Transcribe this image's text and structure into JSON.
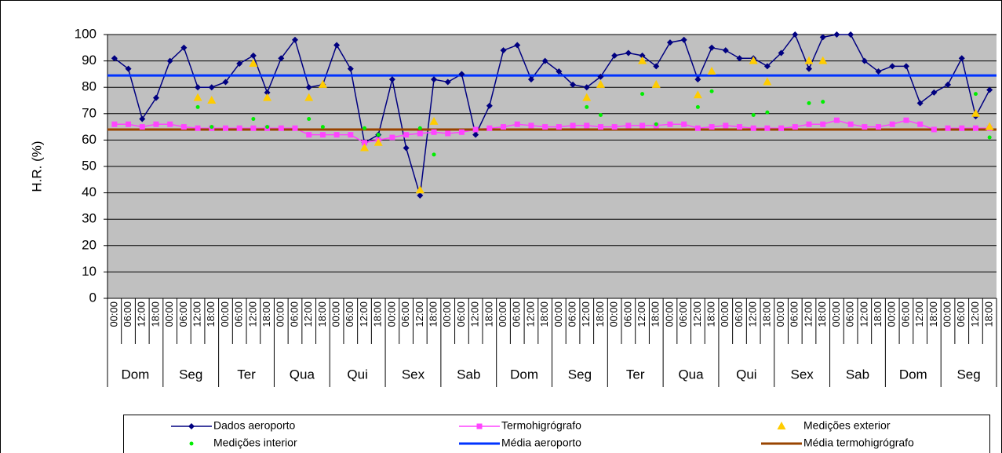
{
  "chart_data": {
    "type": "line",
    "y_label": "H.R. (%)",
    "ylim": [
      0,
      100
    ],
    "yticks": [
      0,
      10,
      20,
      30,
      40,
      50,
      60,
      70,
      80,
      90,
      100
    ],
    "grid": true,
    "plot_background": "#c0c0c0",
    "legend_position": "bottom",
    "categories": [
      "00:00",
      "06:00",
      "12:00",
      "18:00",
      "00:00",
      "06:00",
      "12:00",
      "18:00",
      "00:00",
      "06:00",
      "12:00",
      "18:00",
      "00:00",
      "06:00",
      "12:00",
      "18:00",
      "00:00",
      "06:00",
      "12:00",
      "18:00",
      "00:00",
      "06:00",
      "12:00",
      "18:00",
      "00:00",
      "06:00",
      "12:00",
      "18:00",
      "00:00",
      "06:00",
      "12:00",
      "18:00",
      "00:00",
      "06:00",
      "12:00",
      "18:00",
      "00:00",
      "06:00",
      "12:00",
      "18:00",
      "00:00",
      "06:00",
      "12:00",
      "18:00",
      "00:00",
      "06:00",
      "12:00",
      "18:00",
      "00:00",
      "06:00",
      "12:00",
      "18:00",
      "00:00",
      "06:00",
      "12:00",
      "18:00",
      "00:00",
      "06:00",
      "12:00",
      "18:00",
      "00:00",
      "06:00",
      "12:00",
      "18:00"
    ],
    "groups": [
      "Dom",
      "Seg",
      "Ter",
      "Qua",
      "Qui",
      "Sex",
      "Sab",
      "Dom",
      "Seg",
      "Ter",
      "Qua",
      "Qui",
      "Sex",
      "Sab",
      "Dom",
      "Seg"
    ],
    "series": [
      {
        "name": "Dados aeroporto",
        "color": "#000080",
        "marker": "diamond",
        "line": true,
        "values": [
          91,
          87,
          68,
          76,
          90,
          95,
          80,
          80,
          82,
          89,
          92,
          78,
          91,
          98,
          80,
          81,
          96,
          87,
          59,
          62,
          83,
          57,
          39,
          83,
          82,
          85,
          62,
          73,
          94,
          96,
          83,
          90,
          86,
          81,
          80,
          84,
          92,
          93,
          92,
          88,
          97,
          98,
          83,
          95,
          94,
          91,
          91,
          88,
          93,
          100,
          87,
          99,
          100,
          100,
          90,
          86,
          88,
          88,
          74,
          78,
          81,
          91,
          69,
          79
        ]
      },
      {
        "name": "Termohigrógrafo",
        "color": "#ff44ff",
        "marker": "square",
        "line": true,
        "values": [
          66,
          66,
          65,
          66,
          66,
          65,
          64.5,
          64.5,
          64.5,
          64.5,
          64.5,
          64.5,
          64.5,
          64.5,
          62,
          62,
          62,
          62,
          59,
          60,
          61,
          62,
          62.5,
          63,
          62.5,
          63,
          64,
          64.5,
          65,
          66,
          65.5,
          65,
          65,
          65.5,
          65.5,
          65,
          65,
          65.5,
          65.5,
          65.5,
          66,
          66,
          64.5,
          65,
          65.5,
          65,
          64.5,
          64.5,
          64.5,
          65,
          66,
          66,
          67.5,
          66,
          65,
          65,
          66,
          67.5,
          66,
          64,
          64.5,
          64.5,
          64.5,
          64.5
        ]
      },
      {
        "name": "Medições exterior",
        "color": "#ffcc00",
        "marker": "triangle",
        "line": false,
        "values": [
          null,
          null,
          null,
          null,
          null,
          null,
          76,
          75,
          null,
          null,
          89,
          76,
          null,
          null,
          76,
          81,
          null,
          null,
          57,
          59,
          null,
          null,
          41,
          67,
          null,
          null,
          null,
          null,
          null,
          null,
          null,
          null,
          null,
          null,
          76,
          81,
          null,
          null,
          90,
          81,
          null,
          null,
          77,
          86,
          null,
          null,
          90,
          82,
          null,
          null,
          90,
          90,
          null,
          null,
          null,
          null,
          null,
          null,
          null,
          null,
          null,
          null,
          70,
          65
        ]
      },
      {
        "name": "Medições interior",
        "color": "#00ee00",
        "marker": "circle",
        "line": false,
        "values": [
          null,
          null,
          null,
          null,
          null,
          null,
          72.5,
          65,
          null,
          null,
          68,
          65,
          null,
          null,
          68,
          65,
          null,
          null,
          64.5,
          62,
          null,
          null,
          64.5,
          54.5,
          null,
          null,
          null,
          null,
          null,
          null,
          null,
          null,
          null,
          null,
          72.5,
          69.5,
          null,
          null,
          77.5,
          66,
          null,
          null,
          72.5,
          78.5,
          null,
          null,
          69.5,
          70.5,
          null,
          null,
          74,
          74.5,
          null,
          null,
          null,
          null,
          null,
          null,
          null,
          null,
          null,
          null,
          77.5,
          61
        ]
      },
      {
        "name": "Média aeroporto",
        "color": "#0033ff",
        "marker": "none",
        "value": 84.5
      },
      {
        "name": "Média termohigrógrafo",
        "color": "#994400",
        "marker": "none",
        "value": 64
      }
    ]
  }
}
